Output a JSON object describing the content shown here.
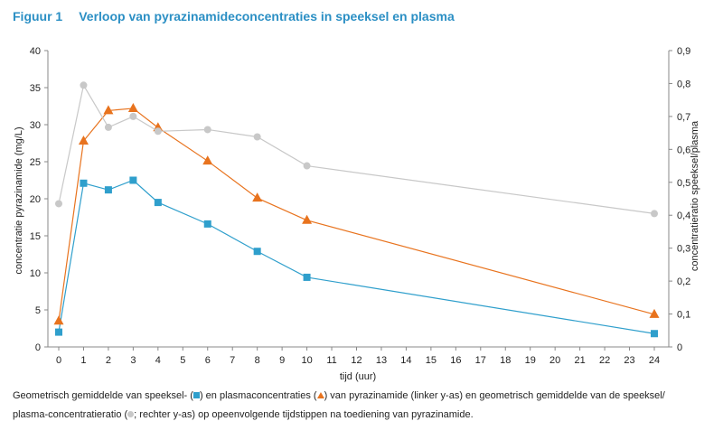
{
  "figure": {
    "number": "Figuur 1",
    "title": "Verloop van pyrazinamideconcentraties in speeksel en plasma"
  },
  "caption": {
    "part1": "Geometrisch gemiddelde van speeksel- (",
    "part2": ") en plasmaconcentraties (",
    "part3": ") van pyrazinamide (linker y-as) en geometrisch gemiddelde van de speeksel/",
    "part4": "plasma-concentratieratio (",
    "part5": "; rechter y-as) op opeenvolgende tijdstippen na toediening van pyrazinamide."
  },
  "chart_data": {
    "type": "line",
    "xlabel": "tijd (uur)",
    "ylabel": "concentratie pyrazinamide (mg/L)",
    "y2label": "concentratieratio speeksel/plasma",
    "xlim": [
      0,
      24
    ],
    "ylim": [
      0,
      40
    ],
    "y2lim": [
      0,
      0.9
    ],
    "xticks": [
      0,
      1,
      2,
      3,
      4,
      5,
      6,
      7,
      8,
      9,
      10,
      11,
      12,
      13,
      14,
      15,
      16,
      17,
      18,
      19,
      20,
      21,
      22,
      23,
      24
    ],
    "yticks": [
      0,
      5,
      10,
      15,
      20,
      25,
      30,
      35,
      40
    ],
    "y2ticks": [
      "0",
      "0,1",
      "0,2",
      "0,3",
      "0,4",
      "0,5",
      "0,6",
      "0,7",
      "0,8",
      "0,9"
    ],
    "grid": false,
    "series": [
      {
        "key": "speeksel",
        "axis": "left",
        "marker": "square",
        "color": "#2f9fcc",
        "x": [
          0,
          1,
          2,
          3,
          4,
          6,
          8,
          10,
          24
        ],
        "y": [
          2.0,
          22.1,
          21.2,
          22.5,
          19.5,
          16.6,
          12.9,
          9.4,
          1.8
        ]
      },
      {
        "key": "plasma",
        "axis": "left",
        "marker": "triangle",
        "color": "#e8731e",
        "x": [
          0,
          1,
          2,
          3,
          4,
          6,
          8,
          10,
          24
        ],
        "y": [
          3.5,
          27.8,
          31.9,
          32.2,
          29.6,
          25.1,
          20.1,
          17.1,
          4.4
        ]
      },
      {
        "key": "ratio",
        "axis": "right",
        "marker": "circle",
        "color": "#c8c8c8",
        "x": [
          0,
          1,
          2,
          3,
          4,
          6,
          8,
          10,
          24
        ],
        "y": [
          0.435,
          0.795,
          0.667,
          0.7,
          0.655,
          0.66,
          0.638,
          0.55,
          0.405
        ]
      }
    ]
  }
}
